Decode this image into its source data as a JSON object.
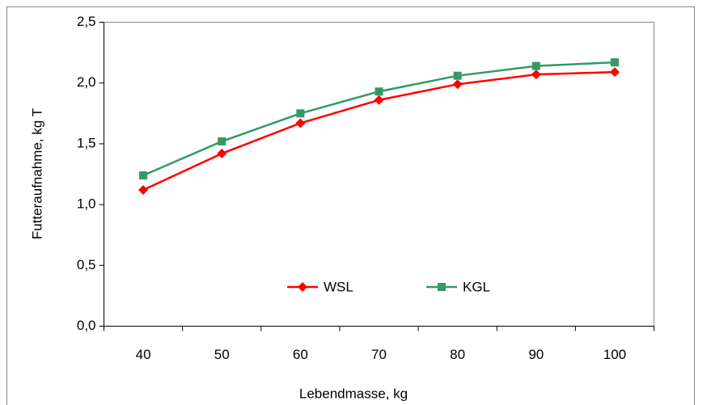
{
  "chart_data": {
    "type": "line",
    "xlabel": "Lebendmasse, kg",
    "ylabel": "Futteraufnahme, kg T",
    "categories": [
      "40",
      "50",
      "60",
      "70",
      "80",
      "90",
      "100"
    ],
    "series": [
      {
        "name": "WSL",
        "color": "#ff0000",
        "marker": "diamond",
        "values": [
          1.12,
          1.42,
          1.67,
          1.86,
          1.99,
          2.07,
          2.09
        ]
      },
      {
        "name": "KGL",
        "color": "#339966",
        "marker": "square",
        "values": [
          1.24,
          1.52,
          1.75,
          1.93,
          2.06,
          2.14,
          2.17
        ]
      }
    ],
    "ylim": [
      0,
      2.5
    ],
    "yticks": [
      {
        "value": 0,
        "label": "0,0"
      },
      {
        "value": 0.5,
        "label": "0,5"
      },
      {
        "value": 1,
        "label": "1,0"
      },
      {
        "value": 1.5,
        "label": "1,5"
      },
      {
        "value": 2,
        "label": "2,0"
      },
      {
        "value": 2.5,
        "label": "2,5"
      }
    ],
    "grid": false,
    "legend": "lower center"
  }
}
